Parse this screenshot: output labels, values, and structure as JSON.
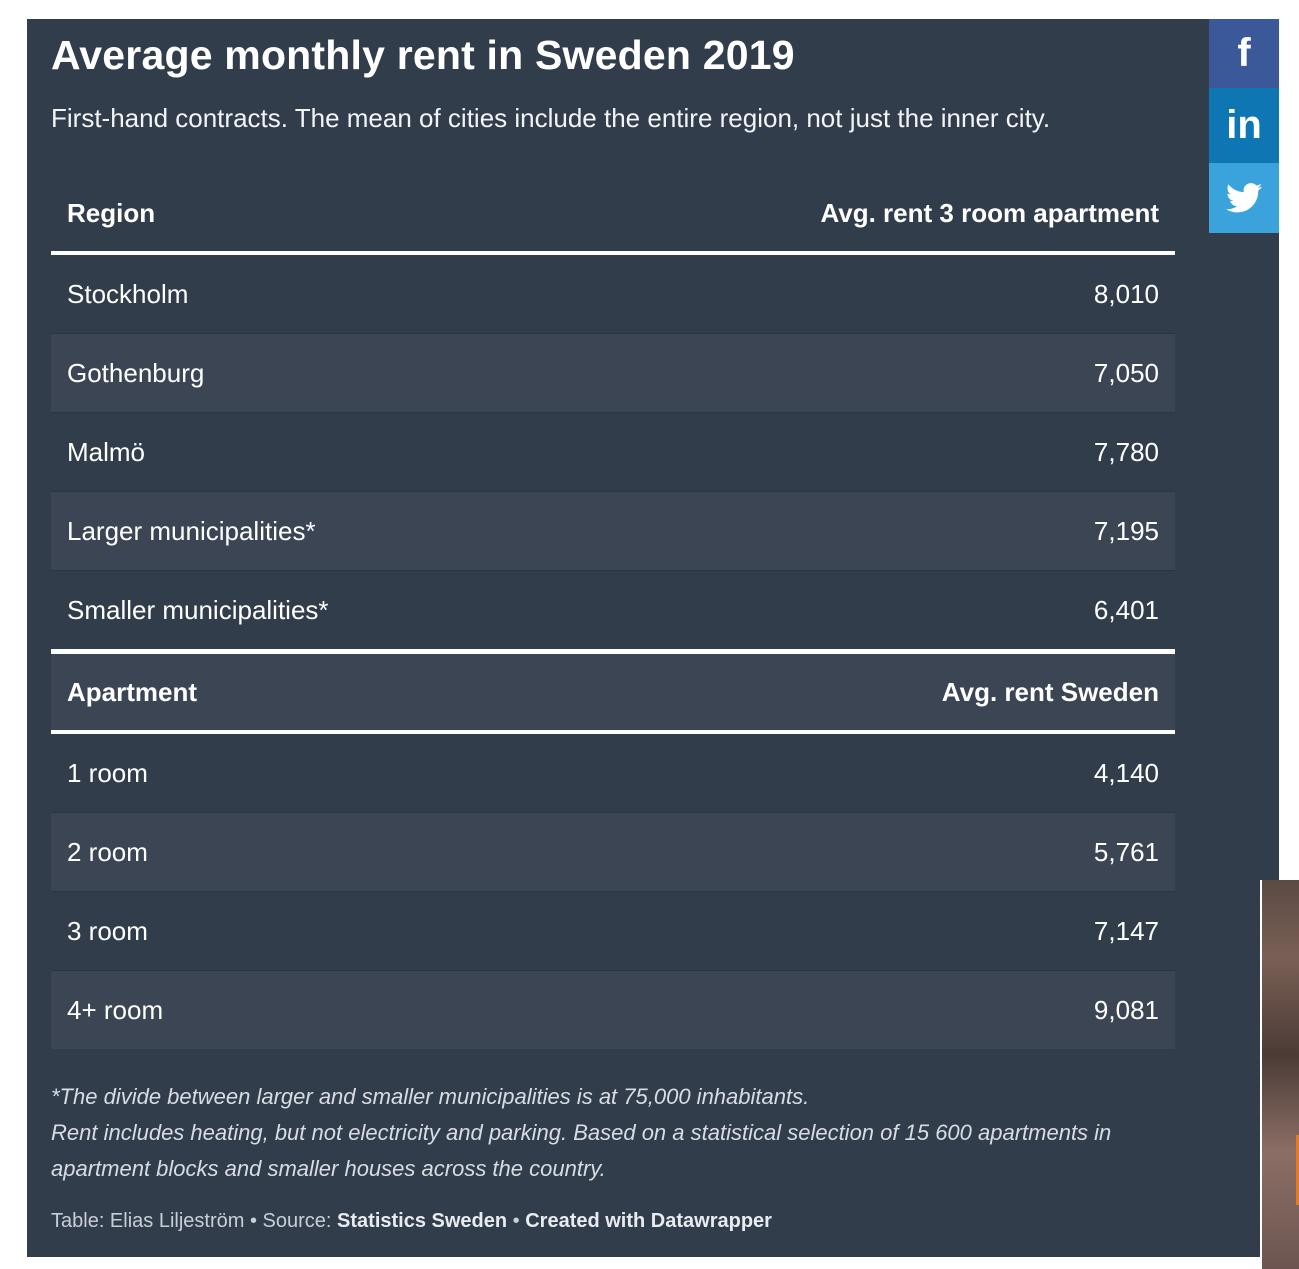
{
  "title": "Average monthly rent in Sweden 2019",
  "subtitle": "First-hand contracts. The mean of cities include the entire region, not just the inner city.",
  "table1": {
    "headers": [
      "Region",
      "Avg. rent 3 room apartment"
    ],
    "rows": [
      [
        "Stockholm",
        "8,010"
      ],
      [
        "Gothenburg",
        "7,050"
      ],
      [
        "Malmö",
        "7,780"
      ],
      [
        "Larger municipalities*",
        "7,195"
      ],
      [
        "Smaller municipalities*",
        "6,401"
      ]
    ]
  },
  "table2": {
    "headers": [
      "Apartment",
      "Avg. rent Sweden"
    ],
    "rows": [
      [
        "1 room",
        "4,140"
      ],
      [
        "2 room",
        "5,761"
      ],
      [
        "3 room",
        "7,147"
      ],
      [
        "4+ room",
        "9,081"
      ]
    ]
  },
  "notes": {
    "line1": "*The divide between larger and smaller municipalities is at 75,000 inhabitants.",
    "line2": "Rent includes heating, but not electricity and parking. Based on a statistical selection of 15 600 apartments in apartment blocks and smaller houses across the country."
  },
  "credits": {
    "table_label": "Table: Elias Liljeström",
    "sep1": " • ",
    "source_label": "Source: ",
    "source_name": "Statistics Sweden",
    "sep2": " • ",
    "created": "Created with Datawrapper"
  },
  "share": {
    "facebook_icon": "facebook-icon",
    "linkedin_icon": "linkedin-icon",
    "twitter_icon": "twitter-icon"
  },
  "chart_data": {
    "type": "table",
    "title": "Average monthly rent in Sweden 2019",
    "subtitle": "First-hand contracts. The mean of cities include the entire region, not just the inner city.",
    "tables": [
      {
        "columns": [
          "Region",
          "Avg. rent 3 room apartment"
        ],
        "rows": [
          {
            "label": "Stockholm",
            "value": 8010
          },
          {
            "label": "Gothenburg",
            "value": 7050
          },
          {
            "label": "Malmö",
            "value": 7780
          },
          {
            "label": "Larger municipalities*",
            "value": 7195
          },
          {
            "label": "Smaller municipalities*",
            "value": 6401
          }
        ]
      },
      {
        "columns": [
          "Apartment",
          "Avg. rent Sweden"
        ],
        "rows": [
          {
            "label": "1 room",
            "value": 4140
          },
          {
            "label": "2 room",
            "value": 5761
          },
          {
            "label": "3 room",
            "value": 7147
          },
          {
            "label": "4+ room",
            "value": 9081
          }
        ]
      }
    ]
  }
}
